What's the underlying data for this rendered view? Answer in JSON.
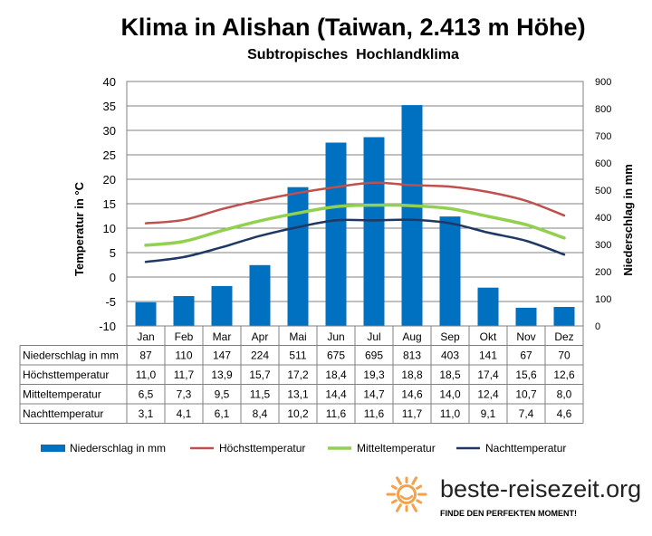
{
  "chart_data": {
    "type": "bar",
    "title": "Klima in Alishan (Taiwan, 2.413 m Höhe)",
    "subtitle": "Subtropisches  Hochlandklima",
    "ylabel_left": "Temperatur in °C",
    "ylabel_right": "Niederschlag in mm",
    "ylim_left": [
      -10,
      40
    ],
    "ylim_right": [
      0,
      900
    ],
    "yticks_left": [
      "40",
      "35",
      "30",
      "25",
      "20",
      "15",
      "10",
      "5",
      "0",
      "-5",
      "-10"
    ],
    "yticks_right": [
      "900",
      "800",
      "700",
      "600",
      "500",
      "400",
      "300",
      "200",
      "100",
      "0"
    ],
    "grid": true,
    "legend_position": "bottom",
    "categories": [
      "Jan",
      "Feb",
      "Mar",
      "Apr",
      "Mai",
      "Jun",
      "Jul",
      "Aug",
      "Sep",
      "Okt",
      "Nov",
      "Dez"
    ],
    "bar_series": {
      "name": "Niederschlag in mm",
      "row_label": "Niederschlag in mm",
      "color": "#0070C0",
      "values": [
        87,
        110,
        147,
        224,
        511,
        675,
        695,
        813,
        403,
        141,
        67,
        70
      ],
      "labels": [
        "87",
        "110",
        "147",
        "224",
        "511",
        "675",
        "695",
        "813",
        "403",
        "141",
        "67",
        "70"
      ]
    },
    "line_series": [
      {
        "name": "Höchsttemperatur",
        "color": "#C0504D",
        "values": [
          11.0,
          11.7,
          13.9,
          15.7,
          17.2,
          18.4,
          19.3,
          18.8,
          18.5,
          17.4,
          15.6,
          12.6
        ],
        "labels": [
          "11,0",
          "11,7",
          "13,9",
          "15,7",
          "17,2",
          "18,4",
          "19,3",
          "18,8",
          "18,5",
          "17,4",
          "15,6",
          "12,6"
        ]
      },
      {
        "name": "Mitteltemperatur",
        "color": "#92D050",
        "values": [
          6.5,
          7.3,
          9.5,
          11.5,
          13.1,
          14.4,
          14.7,
          14.6,
          14.0,
          12.4,
          10.7,
          8.0
        ],
        "labels": [
          "6,5",
          "7,3",
          "9,5",
          "11,5",
          "13,1",
          "14,4",
          "14,7",
          "14,6",
          "14,0",
          "12,4",
          "10,7",
          "8,0"
        ]
      },
      {
        "name": "Nachttemperatur",
        "color": "#1F3864",
        "values": [
          3.1,
          4.1,
          6.1,
          8.4,
          10.2,
          11.6,
          11.6,
          11.7,
          11.0,
          9.1,
          7.4,
          4.6
        ],
        "labels": [
          "3,1",
          "4,1",
          "6,1",
          "8,4",
          "10,2",
          "11,6",
          "11,6",
          "11,7",
          "11,0",
          "9,1",
          "7,4",
          "4,6"
        ]
      }
    ]
  },
  "branding": {
    "site": "beste-reisezeit.org",
    "tagline": "FINDE DEN PERFEKTEN MOMENT!",
    "accent": "#F5A04A"
  }
}
